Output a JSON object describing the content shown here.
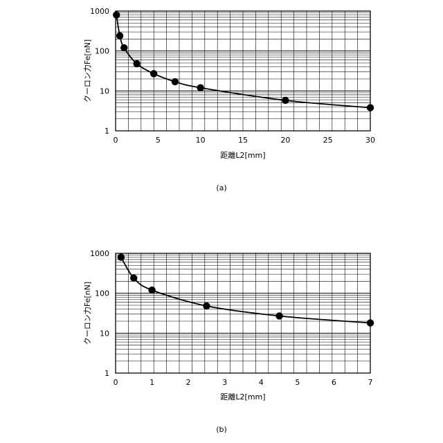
{
  "chart_data": [
    {
      "type": "line",
      "caption": "(a)",
      "xlabel": "距離L2[mm]",
      "ylabel": "クーロン力Fe[nN]",
      "xlim": [
        0,
        30
      ],
      "ylim": [
        1,
        1000
      ],
      "y_scale": "log",
      "grid": true,
      "x_ticks": [
        0,
        5,
        10,
        15,
        20,
        25,
        30
      ],
      "y_ticks": [
        1,
        10,
        100,
        1000
      ],
      "series": [
        {
          "x": [
            0.1,
            0.5,
            1,
            2.5,
            4.5,
            7,
            10,
            20,
            30
          ],
          "y": [
            800,
            240,
            120,
            48,
            27,
            17,
            12,
            5.8,
            3.8
          ]
        }
      ]
    },
    {
      "type": "line",
      "caption": "(b)",
      "xlabel": "距離L2[mm]",
      "ylabel": "クーロン力Fe[nN]",
      "xlim": [
        0,
        7
      ],
      "ylim": [
        1,
        1000
      ],
      "y_scale": "log",
      "grid": true,
      "x_ticks": [
        0,
        1,
        2,
        3,
        4,
        5,
        6,
        7
      ],
      "y_ticks": [
        1,
        10,
        100,
        1000
      ],
      "series": [
        {
          "x": [
            0.15,
            0.5,
            1,
            2.5,
            4.5,
            7
          ],
          "y": [
            800,
            240,
            120,
            48,
            27,
            18
          ]
        }
      ]
    }
  ]
}
